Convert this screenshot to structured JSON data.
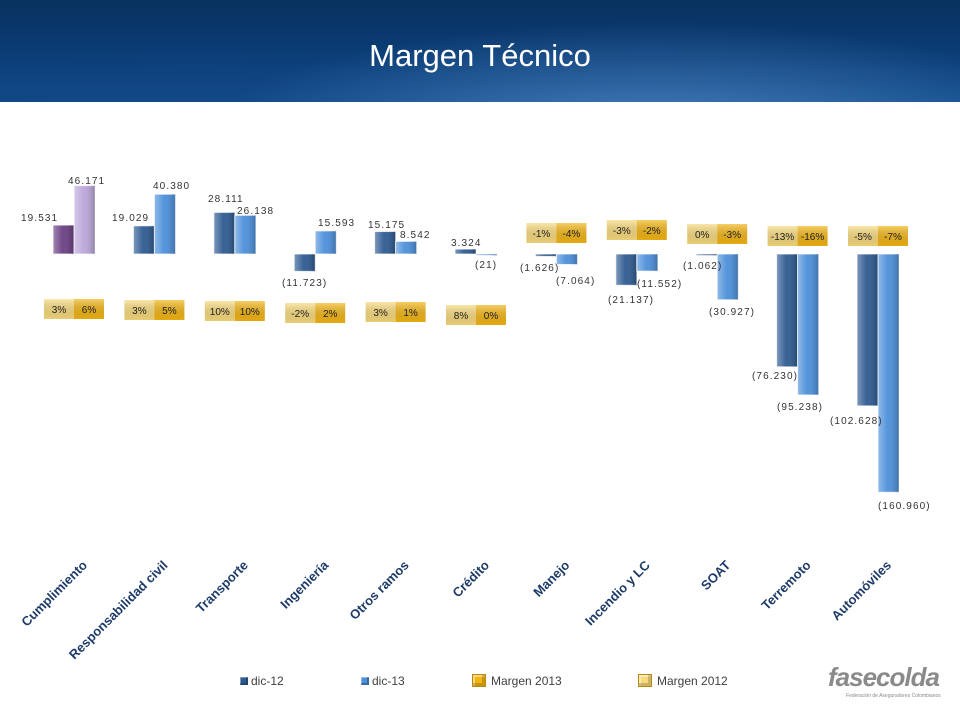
{
  "chart_data": {
    "type": "bar",
    "title": "Margen Técnico",
    "categories": [
      "Cumplimiento",
      "Responsabilidad civil",
      "Transporte",
      "Ingeniería",
      "Otros ramos",
      "Crédito",
      "Manejo",
      "Incendio y LC",
      "SOAT",
      "Terremoto",
      "Automóviles"
    ],
    "series": [
      {
        "name": "dic-12",
        "values": [
          19531,
          19029,
          28111,
          -11723,
          15175,
          3324,
          -1626,
          -21137,
          -1062,
          -76230,
          -102628
        ],
        "value_labels": [
          "19.531",
          "19.029",
          "28.111",
          "(11.723)",
          "15.175",
          "3.324",
          "(1.626)",
          "(21.137)",
          "(1.062)",
          "(76.230)",
          "(102.628)"
        ]
      },
      {
        "name": "dic-13",
        "values": [
          46171,
          40380,
          26138,
          15593,
          8542,
          -21,
          -7064,
          -11552,
          -30927,
          -95238,
          -160960
        ],
        "value_labels": [
          "46.171",
          "40.380",
          "26.138",
          "15.593",
          "8.542",
          "(21)",
          "(7.064)",
          "(11.552)",
          "(30.927)",
          "(95.238)",
          "(160.960)"
        ]
      }
    ],
    "margins": [
      {
        "name": "Margen 2012",
        "values": [
          "3%",
          "3%",
          "10%",
          "-2%",
          "3%",
          "8%",
          "-1%",
          "-3%",
          "0%",
          "-13%",
          "-5%"
        ]
      },
      {
        "name": "Margen 2013",
        "values": [
          "6%",
          "5%",
          "10%",
          "2%",
          "1%",
          "0%",
          "-4%",
          "-2%",
          "-3%",
          "-16%",
          "-7%"
        ]
      }
    ],
    "highlight_category_index": 0,
    "legend_position": "bottom",
    "grid": false,
    "axes_visible": false
  },
  "colors": {
    "title": "#FFFFFF",
    "dic12": "#2E5A91",
    "dic13": "#4C8FDA",
    "dic12_highlight": "#6A3F83",
    "dic13_highlight": "#BBA6DA",
    "margen_2012": "#F8DA7C",
    "margen_2013": "#F3B514",
    "category_label": "#1D3B68",
    "value_label": "#333333",
    "margin_label": "#222222",
    "legend_text": "#404040",
    "logo": "#8A8A8A"
  },
  "logo": {
    "name": "fasecolda",
    "tagline": "Federación de Aseguradores Colombianos"
  }
}
